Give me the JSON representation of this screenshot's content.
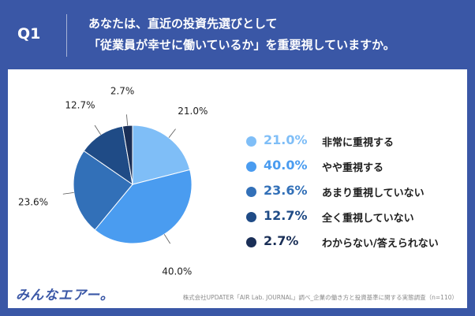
{
  "header": {
    "q_label": "Q1",
    "title_line1": "あなたは、直近の投資先選びとして",
    "title_line2": "「従業員が幸せに働いているか」を重要視していますか。"
  },
  "chart_data": {
    "type": "pie",
    "categories": [
      "非常に重視する",
      "やや重視する",
      "あまり重視していない",
      "全く重視していない",
      "わからない/答えられない"
    ],
    "values": [
      21.0,
      40.0,
      23.6,
      12.7,
      2.7
    ],
    "labels": [
      "21.0%",
      "40.0%",
      "23.6%",
      "12.7%",
      "2.7%"
    ],
    "colors": [
      "#7fbef7",
      "#4a9cf0",
      "#3270b8",
      "#1f4b86",
      "#1a2f57"
    ],
    "legend_position": "right"
  },
  "legend": [
    {
      "pct": "21.0%",
      "text": "非常に重視する",
      "color": "#7fbef7"
    },
    {
      "pct": "40.0%",
      "text": "やや重視する",
      "color": "#4a9cf0"
    },
    {
      "pct": "23.6%",
      "text": "あまり重視していない",
      "color": "#3270b8"
    },
    {
      "pct": "12.7%",
      "text": "全く重視していない",
      "color": "#1f4b86"
    },
    {
      "pct": "2.7%",
      "text": "わからない/答えられない",
      "color": "#1a2f57"
    }
  ],
  "footer": {
    "logo": "みんなエアー。",
    "source": "株式会社UPDATER「AIR Lab. JOURNAL」調べ_企業の働き方と投資基準に関する実態調査（n=110）"
  }
}
